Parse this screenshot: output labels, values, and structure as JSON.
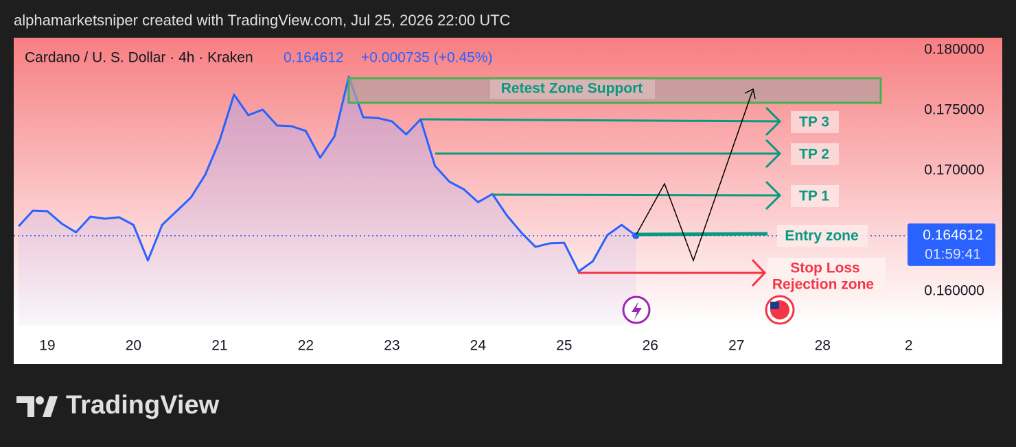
{
  "header": {
    "title": "alphamarketsniper created with TradingView.com, Jul 25, 2026 22:00 UTC"
  },
  "chart_data": {
    "type": "line",
    "title": "Cardano / U. S. Dollar · 4h · Kraken",
    "change": "+0.000735 (+0.45%)",
    "countdown": "01:59:41",
    "color": "#2962ff",
    "x": [
      18.667,
      18.833,
      19,
      19.167,
      19.333,
      19.5,
      19.667,
      19.833,
      20,
      20.167,
      20.333,
      20.5,
      20.667,
      20.833,
      21,
      21.167,
      21.333,
      21.5,
      21.667,
      21.833,
      22,
      22.167,
      22.333,
      22.5,
      22.667,
      22.833,
      23,
      23.167,
      23.333,
      23.5,
      23.667,
      23.833,
      24,
      24.167,
      24.333,
      24.5,
      24.667,
      24.833,
      25,
      25.167,
      25.333,
      25.5,
      25.667,
      25.833
    ],
    "values": [
      0.1654,
      0.1667,
      0.16665,
      0.16562,
      0.16489,
      0.16619,
      0.16602,
      0.16614,
      0.16551,
      0.16256,
      0.16551,
      0.16665,
      0.16778,
      0.16966,
      0.1725,
      0.17631,
      0.1746,
      0.17506,
      0.17375,
      0.17369,
      0.1733,
      0.17108,
      0.17284,
      0.17778,
      0.17443,
      0.17437,
      0.17409,
      0.17301,
      0.17426,
      0.1704,
      0.16909,
      0.16847,
      0.16739,
      0.16807,
      0.16631,
      0.16489,
      0.16369,
      0.16398,
      0.16403,
      0.16165,
      0.1625,
      0.16466,
      0.16551,
      0.164612
    ],
    "xlim": [
      18.61,
      28.97
    ],
    "xticks": [
      19,
      20,
      21,
      22,
      23,
      24,
      25,
      26,
      27,
      28,
      {
        "value": 29,
        "label": "2"
      }
    ],
    "ylim": [
      0.15716,
      0.18102
    ],
    "yticks": [
      {
        "value": 0.18,
        "label": "0.180000"
      },
      {
        "value": 0.175,
        "label": "0.175000"
      },
      {
        "value": 0.17,
        "label": "0.170000"
      },
      {
        "value": 0.16,
        "label": "0.160000"
      }
    ],
    "annotations": [
      "Retest Zone Support",
      "TP 3",
      "TP 2",
      "TP 1",
      "Entry zone",
      "Stop Loss",
      "Rejection zone"
    ]
  },
  "footer": {
    "logo": "TradingView"
  }
}
